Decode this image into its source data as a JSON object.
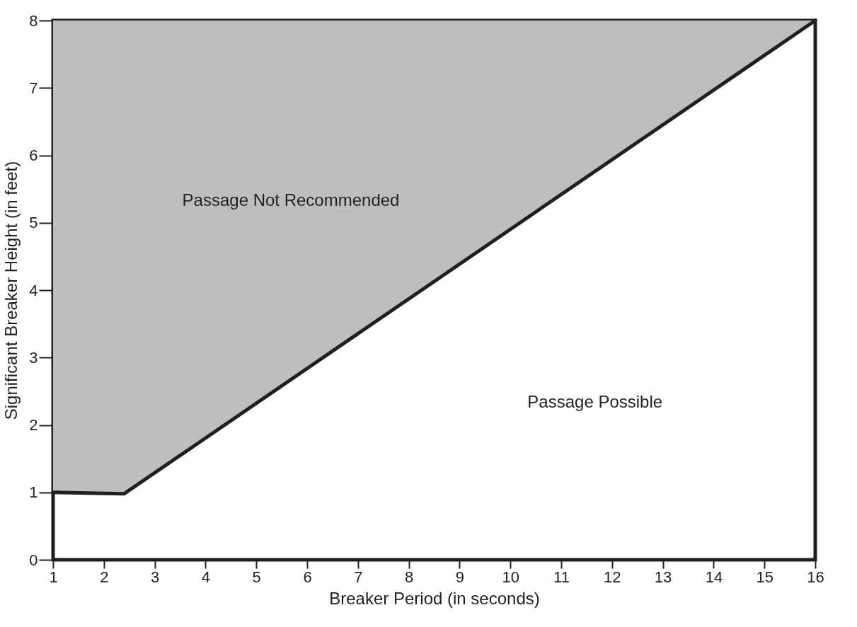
{
  "chart_data": {
    "type": "line",
    "xlabel": "Breaker Period (in seconds)",
    "ylabel": "Significant Breaker Height (in feet)",
    "xlim": [
      1,
      16
    ],
    "xticks": [
      1,
      2,
      3,
      4,
      5,
      6,
      7,
      8,
      9,
      10,
      11,
      12,
      13,
      14,
      15,
      16
    ],
    "ylim": [
      0,
      8
    ],
    "yticks": [
      0,
      1,
      2,
      3,
      4,
      5,
      6,
      7,
      8
    ],
    "grid": false,
    "marker": "none",
    "line_style": "solid",
    "series": [
      {
        "color": "#231f20",
        "x": [
          1,
          2.4,
          16
        ],
        "values": [
          1,
          0.98,
          8
        ],
        "lower": [
          1,
          0.98,
          8
        ],
        "upper": [
          8,
          8,
          8
        ]
      }
    ],
    "annotations": [
      "Passage Not Recommended",
      "Passage Possible"
    ]
  }
}
